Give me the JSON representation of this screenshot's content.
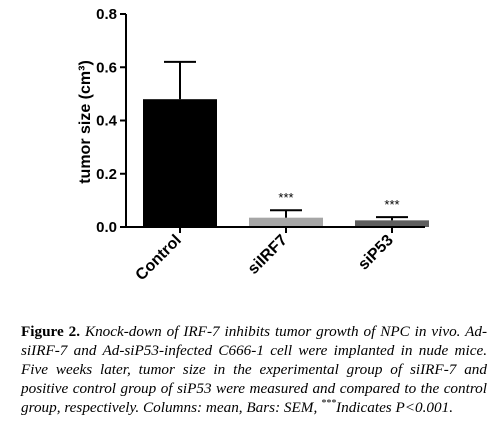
{
  "chart_data": {
    "type": "bar",
    "categories": [
      "Control",
      "siIRF7",
      "siP53"
    ],
    "values": [
      0.48,
      0.035,
      0.025
    ],
    "errors": [
      0.14,
      0.028,
      0.012
    ],
    "significance": [
      "",
      "***",
      "***"
    ],
    "colors": [
      "#000000",
      "#a6a6a6",
      "#5e5e5e"
    ],
    "title": "",
    "xlabel": "",
    "ylabel": "tumor size (cm³)",
    "ylim": [
      0,
      0.8
    ],
    "yticks": [
      "0.0",
      "0.2",
      "0.4",
      "0.6",
      "0.8"
    ],
    "grid": false
  },
  "caption": {
    "label": "Figure 2.",
    "text": "Knock-down of IRF-7 inhibits tumor growth of NPC in vivo. Ad-siIRF-7 and Ad-siP53-infected C666-1 cell were implanted in nude mice. Five weeks later, tumor size in the experimental group of siIRF-7 and positive control group of siP53 were measured and compared to the control group, respectively. Columns: mean, Bars: SEM, ",
    "sig_marker": "***",
    "tail": "Indicates P<0.001."
  }
}
